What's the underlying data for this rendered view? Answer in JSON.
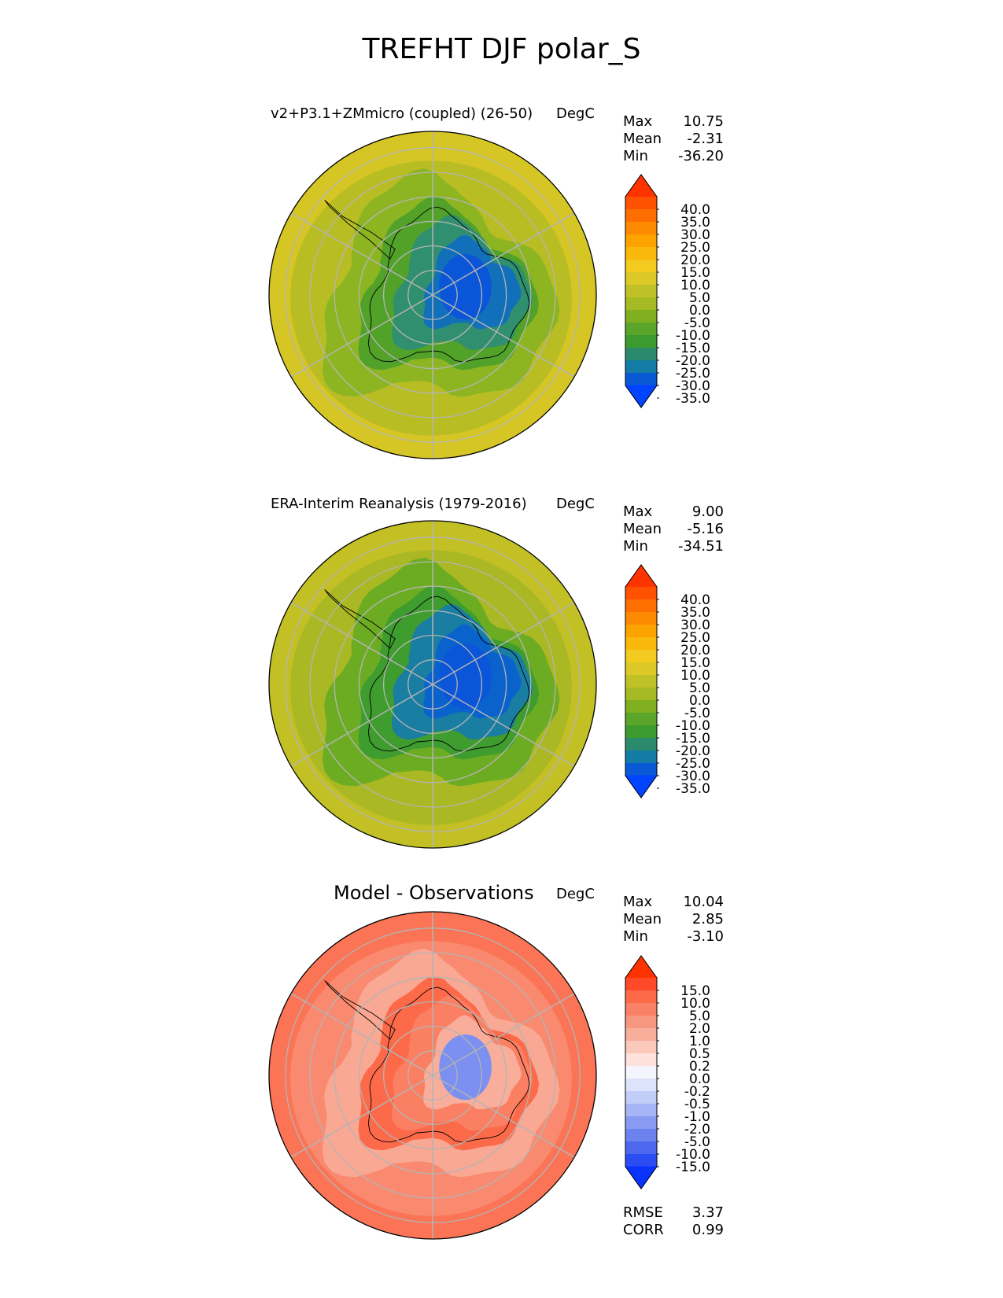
{
  "title": "TREFHT DJF polar_S",
  "chart_data": [
    {
      "type": "heatmap",
      "projection": "south-polar-stereographic",
      "title": "v2+P3.1+ZMmicro (coupled) (26-50)",
      "units": "DegC",
      "stats": [
        {
          "label": "Max",
          "value": "10.75"
        },
        {
          "label": "Mean",
          "value": "-2.31"
        },
        {
          "label": "Min",
          "value": "-36.20"
        }
      ],
      "colorbar": {
        "ticks": [
          "40.0",
          "35.0",
          "30.0",
          "25.0",
          "20.0",
          "15.0",
          "10.0",
          "5.0",
          "0.0",
          "-5.0",
          "-10.0",
          "-15.0",
          "-20.0",
          "-25.0",
          "-30.0",
          "-35.0"
        ],
        "colors": [
          "#ff3300",
          "#ff5200",
          "#ff6e00",
          "#fd8a00",
          "#fca300",
          "#f9b80a",
          "#f3ca20",
          "#dcc927",
          "#bfc126",
          "#a6ba23",
          "#80af20",
          "#5aa52a",
          "#3b9b2f",
          "#2c8a6c",
          "#127ca7",
          "#0a59d4",
          "#0044ff"
        ],
        "regions": [
          {
            "name": "ocean-outer",
            "fill": "#d5c626"
          },
          {
            "name": "ocean-belt",
            "fill": "#b9bd24"
          },
          {
            "name": "coastal-ring",
            "fill": "#8db522"
          },
          {
            "name": "continent-coast",
            "fill": "#52a22a"
          },
          {
            "name": "interior-mid",
            "fill": "#2f8f6e"
          },
          {
            "name": "interior-plateau",
            "fill": "#1270bb"
          },
          {
            "name": "interior-core",
            "fill": "#0a55d8"
          }
        ]
      }
    },
    {
      "type": "heatmap",
      "projection": "south-polar-stereographic",
      "title": "ERA-Interim Reanalysis (1979-2016)",
      "units": "DegC",
      "stats": [
        {
          "label": "Max",
          "value": "9.00"
        },
        {
          "label": "Mean",
          "value": "-5.16"
        },
        {
          "label": "Min",
          "value": "-34.51"
        }
      ],
      "colorbar": {
        "ticks": [
          "40.0",
          "35.0",
          "30.0",
          "25.0",
          "20.0",
          "15.0",
          "10.0",
          "5.0",
          "0.0",
          "-5.0",
          "-10.0",
          "-15.0",
          "-20.0",
          "-25.0",
          "-30.0",
          "-35.0"
        ],
        "colors": [
          "#ff3300",
          "#ff5200",
          "#ff6e00",
          "#fd8a00",
          "#fca300",
          "#f9b80a",
          "#f3ca20",
          "#dcc927",
          "#bfc126",
          "#a6ba23",
          "#80af20",
          "#5aa52a",
          "#3b9b2f",
          "#2c8a6c",
          "#127ca7",
          "#0a59d4",
          "#0044ff"
        ],
        "regions": [
          {
            "name": "ocean-outer",
            "fill": "#c3c026"
          },
          {
            "name": "ocean-belt",
            "fill": "#a9b823"
          },
          {
            "name": "coastal-ring",
            "fill": "#6cac22"
          },
          {
            "name": "continent-coast",
            "fill": "#3f9c2e"
          },
          {
            "name": "interior-mid",
            "fill": "#1a7da2"
          },
          {
            "name": "interior-plateau",
            "fill": "#0a62cc"
          },
          {
            "name": "interior-core",
            "fill": "#0a55d8"
          }
        ]
      }
    },
    {
      "type": "heatmap",
      "projection": "south-polar-stereographic",
      "title": "Model - Observations",
      "units": "DegC",
      "stats": [
        {
          "label": "Max",
          "value": "10.04"
        },
        {
          "label": "Mean",
          "value": "2.85"
        },
        {
          "label": "Min",
          "value": "-3.10"
        }
      ],
      "metrics": [
        {
          "label": "RMSE",
          "value": "3.37"
        },
        {
          "label": "CORR",
          "value": "0.99"
        }
      ],
      "colorbar": {
        "ticks": [
          "15.0",
          "10.0",
          "5.0",
          "2.0",
          "1.0",
          "0.5",
          "0.2",
          "0.0",
          "-0.2",
          "-0.5",
          "-1.0",
          "-2.0",
          "-5.0",
          "-10.0",
          "-15.0"
        ],
        "colors": [
          "#ff3300",
          "#fe4a28",
          "#fc6a4a",
          "#f98166",
          "#f8977f",
          "#f9ae9c",
          "#fbc8bc",
          "#fde2dc",
          "#f5f5fd",
          "#dde3fb",
          "#c3cef8",
          "#a6b5f5",
          "#889bf2",
          "#6b82ef",
          "#4d68ee",
          "#2c4cf3",
          "#0a33fb"
        ],
        "regions": [
          {
            "name": "ocean-outer",
            "fill": "#fb7456"
          },
          {
            "name": "ocean-belt",
            "fill": "#f98a70"
          },
          {
            "name": "coastal-ring",
            "fill": "#f9a894"
          },
          {
            "name": "continent-coast",
            "fill": "#fc6a4a"
          },
          {
            "name": "interior-mid",
            "fill": "#fb8063"
          },
          {
            "name": "interior-plateau",
            "fill": "#f9ae9c"
          },
          {
            "name": "interior-core",
            "fill": "#7b90f0"
          }
        ]
      }
    }
  ]
}
